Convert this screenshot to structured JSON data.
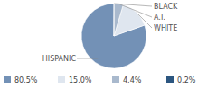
{
  "chart_data": {
    "type": "pie",
    "categories": [
      "HISPANIC",
      "WHITE",
      "A.I.",
      "BLACK"
    ],
    "values": [
      80.5,
      15.0,
      4.4,
      0.2
    ],
    "value_labels": [
      "80.5%",
      "15.0%",
      "4.4%",
      "0.2%"
    ],
    "colors": [
      "#7391b6",
      "#dfe6ef",
      "#a9b9cd",
      "#2c5680"
    ],
    "legend": "bottom"
  }
}
